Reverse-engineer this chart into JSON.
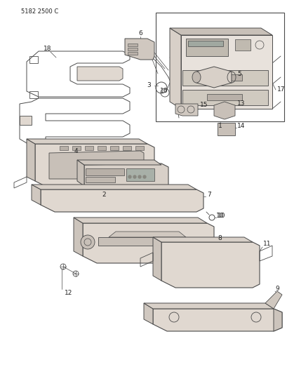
{
  "part_number_text": "5182 2500 C",
  "background_color": "#ffffff",
  "line_color": "#4a4a4a",
  "fig_width": 4.1,
  "fig_height": 5.33,
  "dpi": 100
}
